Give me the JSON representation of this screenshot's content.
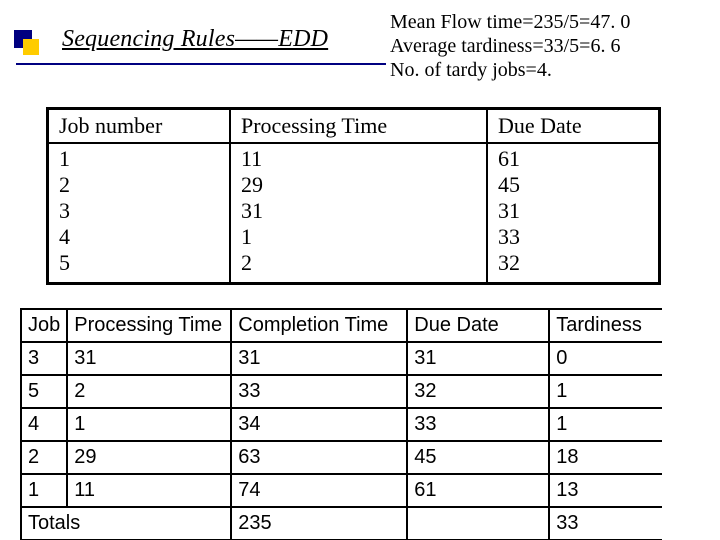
{
  "title": "Sequencing Rules——EDD",
  "stats": {
    "mean_flow": "Mean Flow time=235/5=47. 0",
    "avg_tard": "Average tardiness=33/5=6. 6",
    "num_tardy": "No. of tardy jobs=4."
  },
  "table1": {
    "head": {
      "c1": "Job number",
      "c2": "Processing Time",
      "c3": "Due Date"
    },
    "body": {
      "c1": "1\n2\n3\n4\n5",
      "c2": "11\n29\n31\n1\n2",
      "c3": "61\n45\n31\n33\n32"
    }
  },
  "table2": {
    "head": {
      "c1": "Job",
      "c2": "Processing Time",
      "c3": "Completion Time",
      "c4": "Due Date",
      "c5": "Tardiness"
    },
    "rows": [
      {
        "c1": "3",
        "c2": "31",
        "c3": "31",
        "c4": "31",
        "c5": "0"
      },
      {
        "c1": "5",
        "c2": "2",
        "c3": "33",
        "c4": "32",
        "c5": "1"
      },
      {
        "c1": "4",
        "c2": "1",
        "c3": "34",
        "c4": "33",
        "c5": "1"
      },
      {
        "c1": "2",
        "c2": "29",
        "c3": "63",
        "c4": "45",
        "c5": "18"
      },
      {
        "c1": "1",
        "c2": "11",
        "c3": "74",
        "c4": "61",
        "c5": "13"
      }
    ],
    "totals": {
      "label": "Totals",
      "ct": "235",
      "tard": "33"
    }
  }
}
